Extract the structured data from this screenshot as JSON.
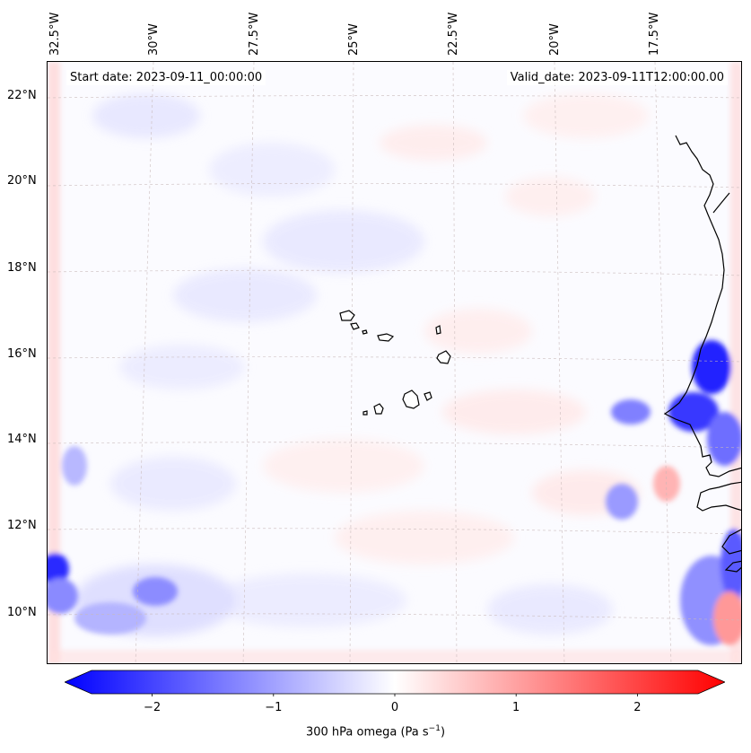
{
  "map": {
    "start_date": "Start date: 2023-09-11_00:00:00",
    "valid_date": "Valid_date: 2023-09-11T12:00:00.00",
    "lon_labels": [
      "32.5°W",
      "30°W",
      "27.5°W",
      "25°W",
      "22.5°W",
      "20°W",
      "17.5°W"
    ],
    "lat_labels": [
      "22°N",
      "20°N",
      "18°N",
      "16°N",
      "14°N",
      "12°N",
      "10°N"
    ],
    "grid": "dashed",
    "variable": "300 hPa omega"
  },
  "colorbar": {
    "label": "300 hPa omega (Pa s",
    "label_sup": "−1",
    "label_end": ")",
    "min": -2.5,
    "max": 2.5,
    "ticks": [
      "−2",
      "−1",
      "0",
      "1",
      "2"
    ],
    "ticks_values": [
      -2,
      -1,
      0,
      1,
      2
    ],
    "colors": {
      "low": "#0000ff",
      "mid": "#ffffff",
      "high": "#ff0000"
    }
  },
  "colors": {
    "coast": "#000000",
    "grid": "#c8b9b9"
  }
}
